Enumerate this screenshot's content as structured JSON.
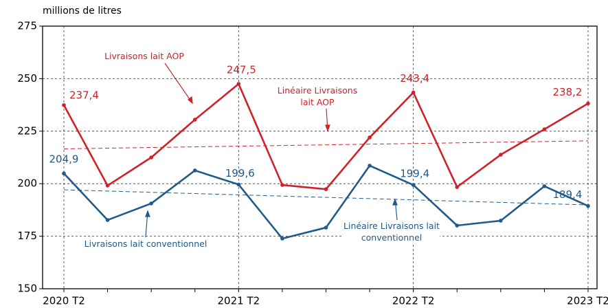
{
  "chart_data": {
    "type": "line",
    "y_label": "millions de litres",
    "categories": [
      "2020 T2",
      null,
      null,
      null,
      "2021 T2",
      null,
      null,
      null,
      "2022 T2",
      null,
      null,
      null,
      "2023 T2"
    ],
    "ylim": [
      150,
      275
    ],
    "yticks": [
      150,
      175,
      200,
      225,
      250,
      275
    ],
    "grid": true,
    "series": [
      {
        "name": "Livraisons lait AOP",
        "color": "#d0202a",
        "values": [
          237.4,
          199.1,
          212.5,
          230.5,
          247.5,
          199.4,
          197.4,
          222.0,
          243.4,
          198.4,
          213.8,
          225.9,
          238.2
        ],
        "value_labels": [
          "237,4",
          null,
          null,
          null,
          "247,5",
          null,
          null,
          null,
          "243,4",
          null,
          null,
          null,
          "238,2"
        ]
      },
      {
        "name": "Livraisons lait conventionnel",
        "color": "#1f5a8a",
        "values": [
          204.9,
          182.7,
          190.6,
          206.3,
          199.6,
          173.9,
          179.1,
          208.6,
          199.4,
          180.1,
          182.4,
          198.8,
          189.4
        ],
        "value_labels": [
          "204,9",
          null,
          null,
          null,
          "199,6",
          null,
          null,
          null,
          "199,4",
          null,
          null,
          null,
          "189,4"
        ]
      }
    ],
    "trendlines": [
      {
        "name": "Linéaire Livraisons\nlait AOP",
        "color": "#d0202a",
        "values": [
          216.6,
          220.4
        ]
      },
      {
        "name": "Linéaire Livraisons lait\nconventionnel",
        "color": "#1f5a8a",
        "values": [
          197.1,
          189.9
        ]
      }
    ]
  }
}
